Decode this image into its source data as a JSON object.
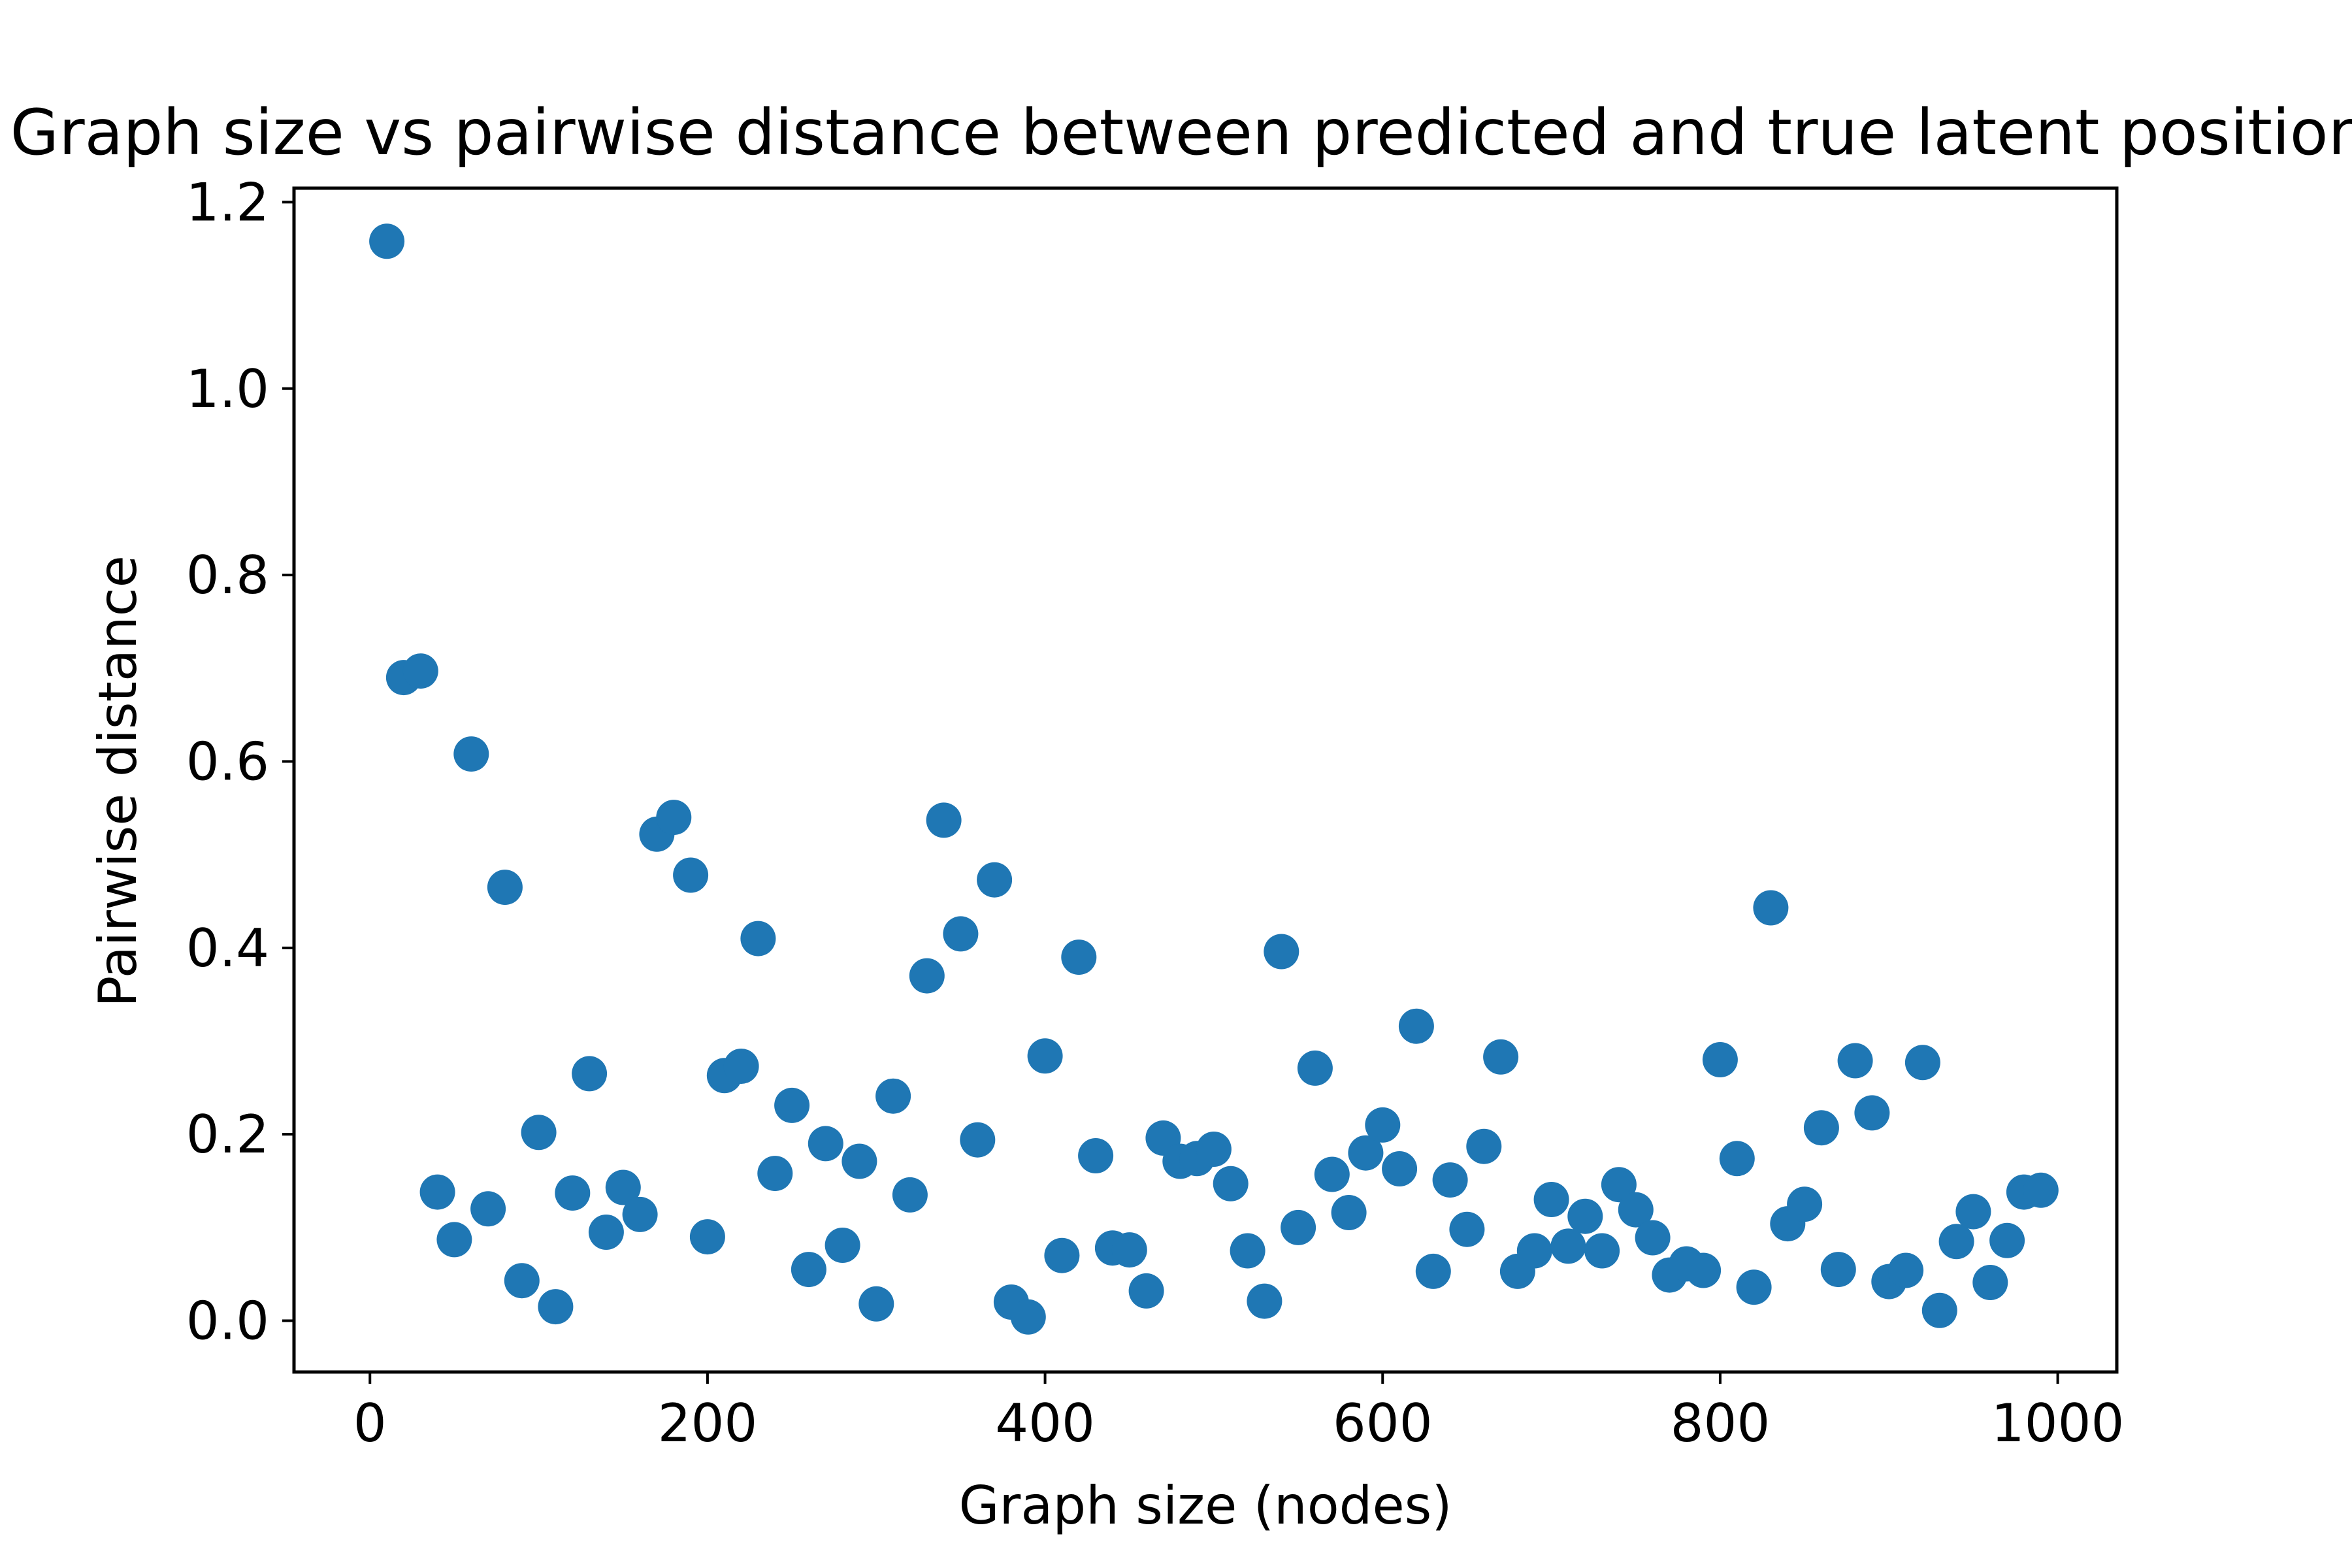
{
  "chart_data": {
    "type": "scatter",
    "title": "Graph size vs pairwise distance between predicted and true latent positions",
    "xlabel": "Graph size (nodes)",
    "ylabel": "Pairwise distance",
    "xlim": [
      -45,
      1035
    ],
    "ylim": [
      -0.055,
      1.215
    ],
    "xticks": [
      0,
      200,
      400,
      600,
      800,
      1000
    ],
    "xtick_labels": [
      "0",
      "200",
      "400",
      "600",
      "800",
      "1000"
    ],
    "yticks": [
      0.0,
      0.2,
      0.4,
      0.6,
      0.8,
      1.0,
      1.2
    ],
    "ytick_labels": [
      "0.0",
      "0.2",
      "0.4",
      "0.6",
      "0.8",
      "1.0",
      "1.2"
    ],
    "grid": false,
    "marker_color": "#1f77b4",
    "series": [
      {
        "x": [
          10,
          20,
          30,
          40,
          50,
          60,
          70,
          80,
          90,
          100,
          110,
          120,
          130,
          140,
          150,
          160,
          170,
          180,
          190,
          200,
          210,
          220,
          230,
          240,
          250,
          260,
          270,
          280,
          290,
          300,
          310,
          320,
          330,
          340,
          350,
          360,
          370,
          380,
          390,
          400,
          410,
          420,
          430,
          440,
          450,
          460,
          470,
          480,
          490,
          500,
          510,
          520,
          530,
          540,
          550,
          560,
          570,
          580,
          590,
          600,
          610,
          620,
          630,
          640,
          650,
          660,
          670,
          680,
          690,
          700,
          710,
          720,
          730,
          740,
          750,
          760,
          770,
          780,
          790,
          800,
          810,
          820,
          830,
          840,
          850,
          860,
          870,
          880,
          890,
          900,
          910,
          920,
          930,
          940,
          950,
          960,
          970,
          980,
          990
        ],
        "y": [
          1.158,
          0.69,
          0.697,
          0.138,
          0.087,
          0.608,
          0.12,
          0.465,
          0.043,
          0.202,
          0.015,
          0.137,
          0.265,
          0.095,
          0.143,
          0.114,
          0.522,
          0.54,
          0.478,
          0.09,
          0.263,
          0.273,
          0.41,
          0.158,
          0.231,
          0.055,
          0.19,
          0.081,
          0.171,
          0.018,
          0.241,
          0.135,
          0.37,
          0.537,
          0.415,
          0.194,
          0.473,
          0.02,
          0.004,
          0.284,
          0.07,
          0.39,
          0.177,
          0.078,
          0.076,
          0.032,
          0.196,
          0.171,
          0.174,
          0.184,
          0.147,
          0.075,
          0.021,
          0.396,
          0.1,
          0.271,
          0.157,
          0.116,
          0.18,
          0.21,
          0.163,
          0.316,
          0.053,
          0.151,
          0.098,
          0.187,
          0.283,
          0.053,
          0.075,
          0.13,
          0.08,
          0.112,
          0.075,
          0.146,
          0.119,
          0.089,
          0.049,
          0.061,
          0.054,
          0.28,
          0.174,
          0.036,
          0.443,
          0.104,
          0.125,
          0.207,
          0.055,
          0.279,
          0.223,
          0.042,
          0.054,
          0.277,
          0.011,
          0.085,
          0.117,
          0.041,
          0.086,
          0.138,
          0.14
        ]
      }
    ]
  }
}
